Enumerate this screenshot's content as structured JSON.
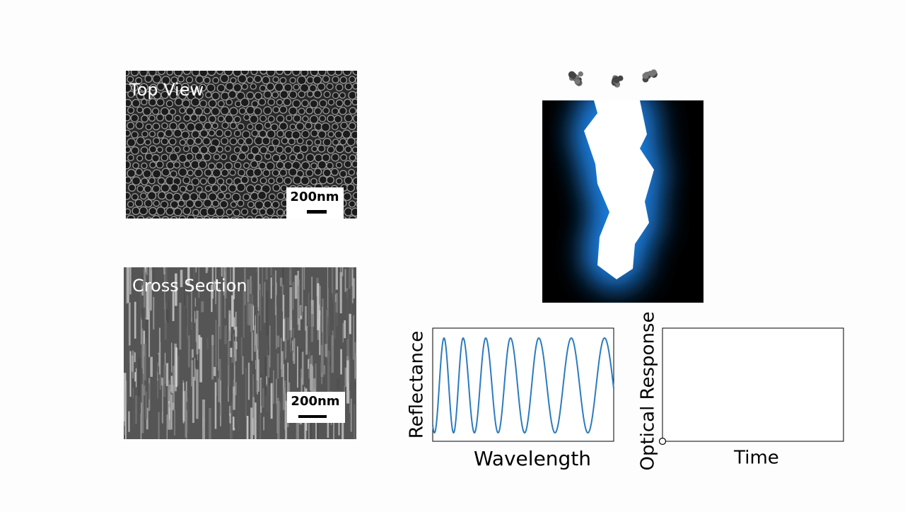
{
  "panels": {
    "top_view": {
      "label": "Top View",
      "scale_bar": "200nm"
    },
    "cross_section": {
      "label": "Cross Section",
      "scale_bar": "200nm"
    }
  },
  "plots": [
    {
      "y_label": "Reflectance",
      "x_label": "Wavelength"
    },
    {
      "y_label": "Optical Response",
      "x_label": "Time"
    }
  ]
}
